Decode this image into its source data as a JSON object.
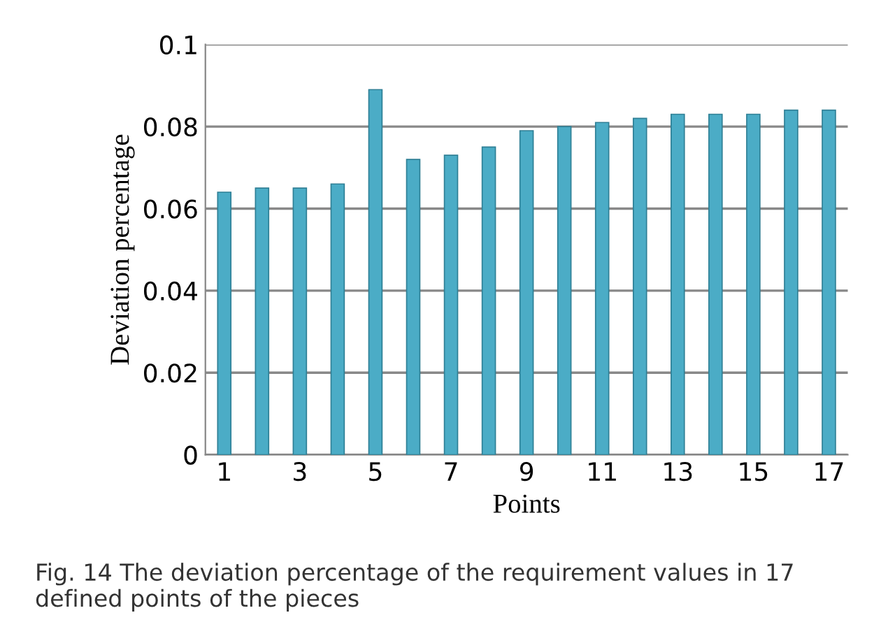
{
  "chart_data": {
    "type": "bar",
    "xlabel": "Points",
    "ylabel": "Deviation percentage",
    "categories": [
      "1",
      null,
      "3",
      null,
      "5",
      null,
      "7",
      null,
      "9",
      null,
      "11",
      null,
      "13",
      null,
      "15",
      null,
      "17"
    ],
    "values": [
      0.064,
      0.065,
      0.065,
      0.066,
      0.089,
      0.072,
      0.073,
      0.075,
      0.079,
      0.08,
      0.081,
      0.082,
      0.083,
      0.083,
      0.083,
      0.084,
      0.084
    ],
    "color": "#4bacc6",
    "ylim": [
      0,
      0.1
    ],
    "yticks": [
      {
        "value": 0,
        "label": "0"
      },
      0.02,
      0.04,
      0.06,
      0.08,
      0.1
    ],
    "grid": "y",
    "annotations": [
      "Fig. 14 The deviation percentage of the requirement values in 17 defined points of the pieces"
    ]
  }
}
